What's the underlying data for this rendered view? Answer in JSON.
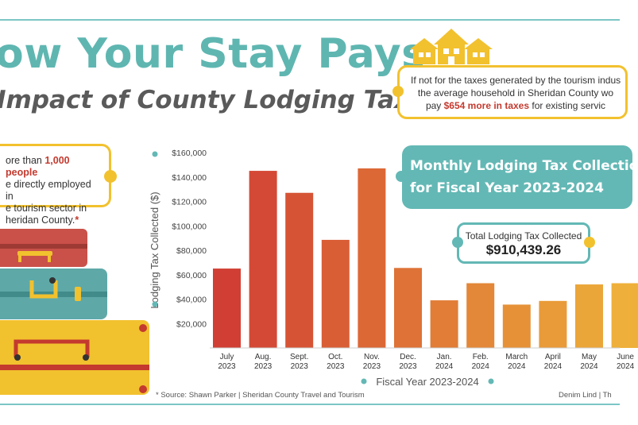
{
  "header": {
    "title": "ow Your Stay Pays",
    "subtitle": "Impact of County Lodging Tax"
  },
  "household_callout": {
    "line1": "If not for the taxes generated by the tourism indus",
    "line2": "the average household in Sheridan County wo",
    "line3_pre": "pay ",
    "line3_highlight": "$654 more in taxes",
    "line3_post": " for existing servic",
    "icon": "houses-icon"
  },
  "employment_callout": {
    "line1_pre": "ore than ",
    "line1_highlight": "1,000 people",
    "line2": "e directly employed in",
    "line3": "e tourism sector in",
    "line4": "heridan County.",
    "asterisk": "*"
  },
  "panel": {
    "title_line1": "Monthly Lodging Tax Collectio",
    "title_line2": "for Fiscal Year 2023-2024"
  },
  "total": {
    "label": "Total Lodging Tax Collected",
    "value": "$910,439.26"
  },
  "footer": {
    "source": "* Source: Shawn Parker | Sheridan County Travel and Tourism",
    "credit": "Denim Lind | Th"
  },
  "colors": {
    "teal": "#63b8b5",
    "yellow": "#f2c12e",
    "accent_red": "#c43a2f",
    "bar_start": "#d13f34",
    "bar_end": "#eeb03a"
  },
  "chart_data": {
    "type": "bar",
    "categories": [
      [
        "July",
        "2023"
      ],
      [
        "Aug.",
        "2023"
      ],
      [
        "Sept.",
        "2023"
      ],
      [
        "Oct.",
        "2023"
      ],
      [
        "Nov.",
        "2023"
      ],
      [
        "Dec.",
        "2023"
      ],
      [
        "Jan.",
        "2024"
      ],
      [
        "Feb.",
        "2024"
      ],
      [
        "March",
        "2024"
      ],
      [
        "April",
        "2024"
      ],
      [
        "May",
        "2024"
      ],
      [
        "June",
        "2024"
      ]
    ],
    "values": [
      65000,
      145000,
      127000,
      88500,
      147000,
      65500,
      39000,
      53000,
      35500,
      38500,
      52000,
      53000
    ],
    "ylabel": "Lodging Tax Collected ($)",
    "xlabel": "Fiscal Year 2023-2024",
    "ylim": [
      0,
      160000
    ],
    "yticks": [
      "$20,000",
      "$40,000",
      "$60,000",
      "$80,000",
      "$100,000",
      "$120,000",
      "$140,000",
      "$160,000"
    ],
    "ytick_values": [
      20000,
      40000,
      60000,
      80000,
      100000,
      120000,
      140000,
      160000
    ],
    "grid": false
  }
}
